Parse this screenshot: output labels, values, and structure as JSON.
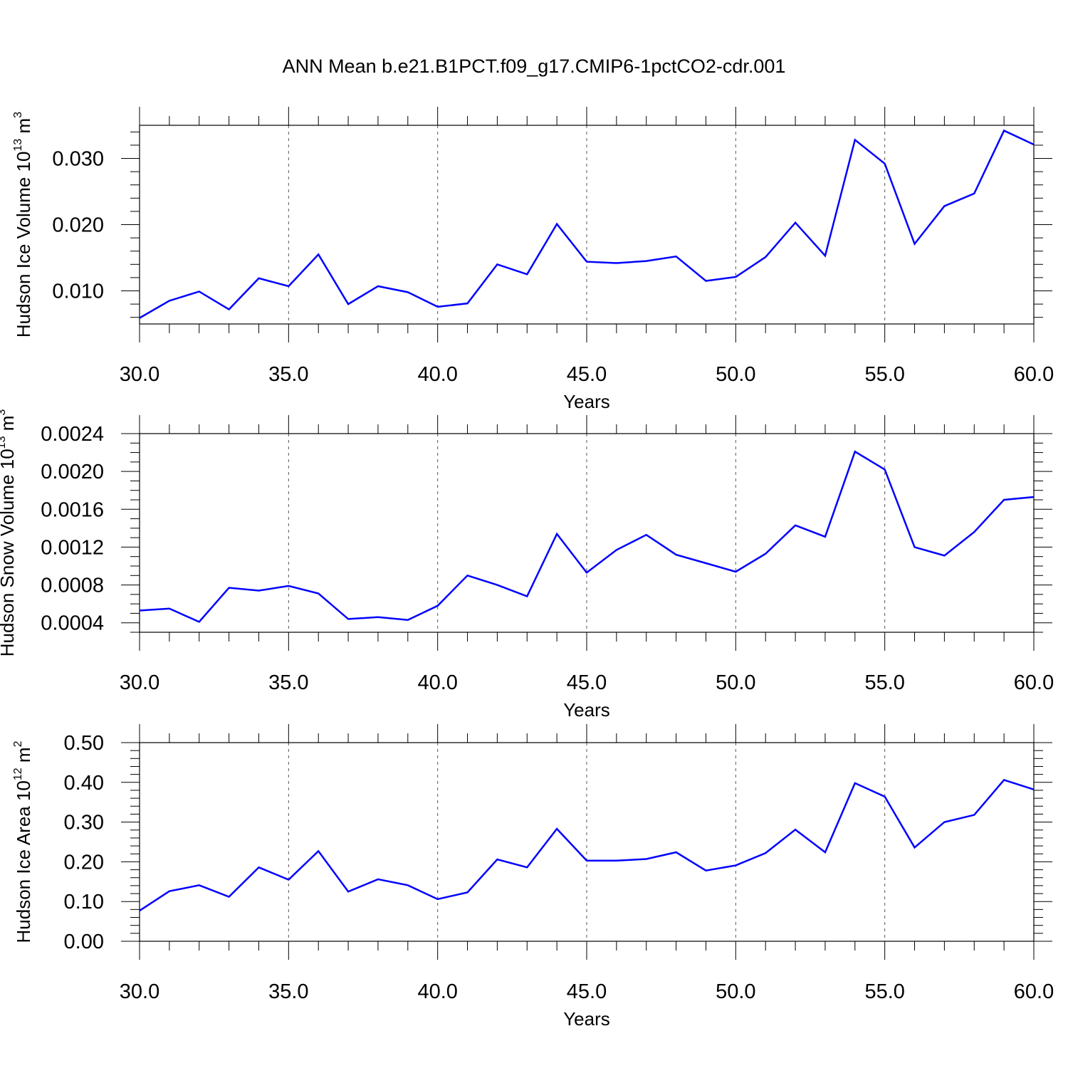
{
  "title": "ANN Mean b.e21.B1PCT.f09_g17.CMIP6-1pctCO2-cdr.001",
  "colors": {
    "line": "#0000ff",
    "axis": "#000000",
    "grid": "#555555"
  },
  "chart_data": [
    {
      "type": "line",
      "xlabel": "Years",
      "ylabel": {
        "text": "Hudson Ice Volume 10",
        "sup": "13",
        "unit": " m",
        "unit_sup": "3"
      },
      "xlim": [
        30,
        60
      ],
      "ylim": [
        0.005,
        0.035
      ],
      "xticks": [
        30,
        35,
        40,
        45,
        50,
        55,
        60
      ],
      "xtick_labels": [
        "30.0",
        "35.0",
        "40.0",
        "45.0",
        "50.0",
        "55.0",
        "60.0"
      ],
      "yticks": [
        0.01,
        0.02,
        0.03
      ],
      "ytick_labels": [
        "0.010",
        "0.020",
        "0.030"
      ],
      "yminor_step": 0.002,
      "x": [
        30,
        31,
        32,
        33,
        34,
        35,
        36,
        37,
        38,
        39,
        40,
        41,
        42,
        43,
        44,
        45,
        46,
        47,
        48,
        49,
        50,
        51,
        52,
        53,
        54,
        55,
        56,
        57,
        58,
        59,
        60
      ],
      "series": [
        {
          "values": [
            0.0059,
            0.0085,
            0.0099,
            0.0072,
            0.0119,
            0.0107,
            0.0155,
            0.008,
            0.0107,
            0.0098,
            0.0076,
            0.0081,
            0.014,
            0.0125,
            0.0201,
            0.0144,
            0.0142,
            0.0145,
            0.0152,
            0.0115,
            0.0121,
            0.0151,
            0.0203,
            0.0153,
            0.0328,
            0.0292,
            0.0171,
            0.0228,
            0.0247,
            0.0342,
            0.0321
          ]
        }
      ]
    },
    {
      "type": "line",
      "xlabel": "Years",
      "ylabel": {
        "text": "Hudson Snow Volume 10",
        "sup": "13",
        "unit": " m",
        "unit_sup": "3"
      },
      "xlim": [
        30,
        60
      ],
      "ylim": [
        0.0003,
        0.0024
      ],
      "xticks": [
        30,
        35,
        40,
        45,
        50,
        55,
        60
      ],
      "xtick_labels": [
        "30.0",
        "35.0",
        "40.0",
        "45.0",
        "50.0",
        "55.0",
        "60.0"
      ],
      "yticks": [
        0.0004,
        0.0008,
        0.0012,
        0.0016,
        0.002,
        0.0024
      ],
      "ytick_labels": [
        "0.0004",
        "0.0008",
        "0.0012",
        "0.0016",
        "0.0020",
        "0.0024"
      ],
      "yminor_step": 0.0001,
      "x": [
        30,
        31,
        32,
        33,
        34,
        35,
        36,
        37,
        38,
        39,
        40,
        41,
        42,
        43,
        44,
        45,
        46,
        47,
        48,
        49,
        50,
        51,
        52,
        53,
        54,
        55,
        56,
        57,
        58,
        59,
        60
      ],
      "series": [
        {
          "values": [
            0.00053,
            0.00055,
            0.00041,
            0.00077,
            0.00074,
            0.00079,
            0.00071,
            0.00044,
            0.00046,
            0.00043,
            0.00058,
            0.0009,
            0.0008,
            0.00068,
            0.00134,
            0.00093,
            0.00117,
            0.00133,
            0.00112,
            0.00103,
            0.00094,
            0.00113,
            0.00143,
            0.00131,
            0.00221,
            0.00202,
            0.0012,
            0.00111,
            0.00136,
            0.0017,
            0.00173
          ]
        }
      ]
    },
    {
      "type": "line",
      "xlabel": "Years",
      "ylabel": {
        "text": "Hudson Ice Area 10",
        "sup": "12",
        "unit": " m",
        "unit_sup": "2"
      },
      "xlim": [
        30,
        60
      ],
      "ylim": [
        0.0,
        0.5
      ],
      "xticks": [
        30,
        35,
        40,
        45,
        50,
        55,
        60
      ],
      "xtick_labels": [
        "30.0",
        "35.0",
        "40.0",
        "45.0",
        "50.0",
        "55.0",
        "60.0"
      ],
      "yticks": [
        0.0,
        0.1,
        0.2,
        0.3,
        0.4,
        0.5
      ],
      "ytick_labels": [
        "0.00",
        "0.10",
        "0.20",
        "0.30",
        "0.40",
        "0.50"
      ],
      "yminor_step": 0.02,
      "x": [
        30,
        31,
        32,
        33,
        34,
        35,
        36,
        37,
        38,
        39,
        40,
        41,
        42,
        43,
        44,
        45,
        46,
        47,
        48,
        49,
        50,
        51,
        52,
        53,
        54,
        55,
        56,
        57,
        58,
        59,
        60
      ],
      "series": [
        {
          "values": [
            0.077,
            0.126,
            0.141,
            0.112,
            0.186,
            0.155,
            0.227,
            0.125,
            0.156,
            0.141,
            0.106,
            0.123,
            0.206,
            0.186,
            0.283,
            0.203,
            0.203,
            0.207,
            0.224,
            0.178,
            0.191,
            0.222,
            0.281,
            0.224,
            0.398,
            0.364,
            0.236,
            0.3,
            0.318,
            0.406,
            0.382
          ]
        }
      ]
    }
  ]
}
